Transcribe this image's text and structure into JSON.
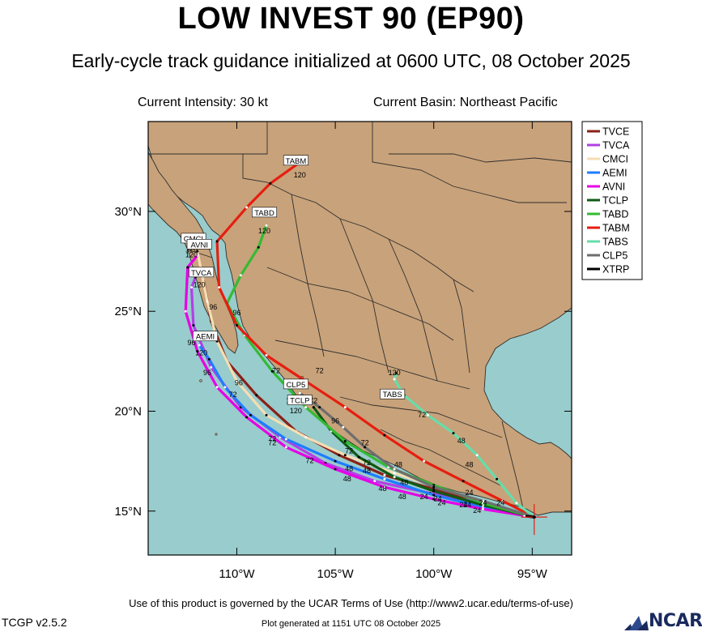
{
  "header": {
    "title": "LOW INVEST 90 (EP90)",
    "subtitle": "Early-cycle track guidance initialized at 0600 UTC, 08 October 2025",
    "intensity": "Current Intensity: 30 kt",
    "basin": "Current Basin: Northeast Pacific"
  },
  "footer": {
    "terms": "Use of this product is governed by the UCAR Terms of Use (http://www2.ucar.edu/terms-of-use)",
    "generated": "Plot generated at 1151 UTC   08 October 2025",
    "version": "TCGP v2.5.2",
    "logo": "NCAR"
  },
  "colors": {
    "ocean": "#99cccc",
    "land": "#c8a27a",
    "border": "#2f2f2f"
  },
  "map": {
    "lon_range": [
      -114.5,
      -93.0
    ],
    "lat_range": [
      12.8,
      34.5
    ],
    "lon_ticks": [
      -110,
      -105,
      -100,
      -95
    ],
    "lat_ticks": [
      15,
      20,
      25,
      30
    ],
    "lon_tick_labels": [
      "110°W",
      "105°W",
      "100°W",
      "95°W"
    ],
    "lat_tick_labels": [
      "15°N",
      "20°N",
      "25°N",
      "30°N"
    ],
    "current_position": {
      "lon": -94.9,
      "lat": 14.7
    }
  },
  "tracks": [
    {
      "name": "TVCE",
      "color": "#8b2018",
      "label": "",
      "points": [
        [
          -94.9,
          14.7
        ],
        [
          -97.5,
          15.4
        ],
        [
          -100,
          16.1
        ],
        [
          -102.5,
          16.8
        ],
        [
          -104.8,
          17.8
        ],
        [
          -107,
          19
        ],
        [
          -109,
          20.8
        ],
        [
          -110.5,
          22.5
        ],
        [
          -111.3,
          24.5
        ],
        [
          -111.7,
          26.6
        ]
      ],
      "tags": []
    },
    {
      "name": "TVCA",
      "color": "#b23fe6",
      "label": "TVCA",
      "label_pos": [
        -111.8,
        26.8
      ],
      "points": [
        [
          -94.9,
          14.7
        ],
        [
          -97.5,
          15.4
        ],
        [
          -100.2,
          15.9
        ],
        [
          -103,
          16.5
        ],
        [
          -105.5,
          17.4
        ],
        [
          -107.8,
          18.7
        ],
        [
          -109.8,
          20.2
        ],
        [
          -111.3,
          22.2
        ],
        [
          -112.2,
          24.3
        ],
        [
          -112.3,
          26.2
        ],
        [
          -112.1,
          26.7
        ]
      ],
      "tags": [
        [
          -111.9,
          26.2,
          "120"
        ]
      ]
    },
    {
      "name": "CMCI",
      "color": "#f5deb3",
      "label": "CMCI",
      "label_pos": [
        -112.2,
        28.5
      ],
      "points": [
        [
          -94.9,
          14.7
        ],
        [
          -97,
          15.3
        ],
        [
          -99.5,
          16.1
        ],
        [
          -102,
          16.9
        ],
        [
          -104.5,
          17.8
        ],
        [
          -106.5,
          18.7
        ],
        [
          -108.5,
          19.8
        ],
        [
          -110,
          21.5
        ],
        [
          -111,
          23.5
        ],
        [
          -111.5,
          25.5
        ],
        [
          -112.0,
          28.0
        ]
      ],
      "tags": [
        [
          -112.3,
          28.0,
          "120"
        ]
      ]
    },
    {
      "name": "AEMI",
      "color": "#1e7dff",
      "label": "AEMI",
      "label_pos": [
        -111.6,
        23.6
      ],
      "points": [
        [
          -94.9,
          14.7
        ],
        [
          -97.5,
          15.2
        ],
        [
          -100,
          15.8
        ],
        [
          -102.5,
          16.6
        ],
        [
          -105,
          17.5
        ],
        [
          -107.5,
          18.6
        ],
        [
          -109.3,
          19.8
        ],
        [
          -110.6,
          21.2
        ],
        [
          -111.4,
          22.6
        ],
        [
          -111.9,
          23.3
        ]
      ],
      "tags": [
        [
          -111.8,
          22.8,
          "120"
        ],
        [
          -112.3,
          23.3,
          "96"
        ],
        [
          -111.5,
          21.8,
          "96"
        ],
        [
          -110.2,
          20.7,
          "72"
        ],
        [
          -108.2,
          18.5,
          "72"
        ],
        [
          -104.3,
          17.0,
          "48"
        ],
        [
          -100.5,
          15.6,
          "24"
        ],
        [
          -97.5,
          15.3,
          "24"
        ]
      ]
    },
    {
      "name": "AVNI",
      "color": "#e600e6",
      "label": "AVNI",
      "label_pos": [
        -111.9,
        28.2
      ],
      "points": [
        [
          -94.9,
          14.7
        ],
        [
          -97.5,
          15.1
        ],
        [
          -100,
          15.6
        ],
        [
          -102.5,
          16.2
        ],
        [
          -105,
          17.1
        ],
        [
          -107.5,
          18.2
        ],
        [
          -109.5,
          19.7
        ],
        [
          -111,
          21.2
        ],
        [
          -112,
          23
        ],
        [
          -112.6,
          25
        ],
        [
          -112.5,
          27.2
        ],
        [
          -112.0,
          27.8
        ]
      ],
      "tags": [
        [
          -112.3,
          27.7,
          "120"
        ],
        [
          -108.2,
          18.3,
          "72"
        ],
        [
          -102.6,
          16.0,
          "48"
        ],
        [
          -98.5,
          15.2,
          "24"
        ]
      ]
    },
    {
      "name": "TCLP",
      "color": "#0f5a14",
      "label": "TCLP",
      "label_pos": [
        -106.8,
        20.4
      ],
      "points": [
        [
          -94.9,
          14.7
        ],
        [
          -97.5,
          15.3
        ],
        [
          -100,
          16.0
        ],
        [
          -102,
          16.7
        ],
        [
          -103.8,
          17.7
        ],
        [
          -105.2,
          19.0
        ],
        [
          -106.1,
          20.2
        ]
      ],
      "tags": [
        [
          -105.0,
          19.4,
          "96"
        ],
        [
          -103.5,
          18.3,
          "72"
        ],
        [
          -101.8,
          17.2,
          "48"
        ],
        [
          -98.2,
          15.8,
          "24"
        ],
        [
          -107,
          19.9,
          "120"
        ]
      ]
    },
    {
      "name": "TABD",
      "color": "#33bb33",
      "label": "TABD",
      "label_pos": [
        -108.6,
        29.8
      ],
      "points": [
        [
          -94.9,
          14.7
        ],
        [
          -97.5,
          15.4
        ],
        [
          -100,
          16.3
        ],
        [
          -102.3,
          17.2
        ],
        [
          -104.5,
          18.5
        ],
        [
          -106.5,
          20.2
        ],
        [
          -108.2,
          22.0
        ],
        [
          -109.6,
          23.8
        ],
        [
          -110.5,
          25.4
        ],
        [
          -109.8,
          26.8
        ],
        [
          -108.9,
          28.2
        ],
        [
          -108.5,
          29.3
        ]
      ],
      "tags": [
        [
          -108.6,
          28.9,
          "120"
        ],
        [
          -110,
          24.8,
          "96"
        ],
        [
          -106.1,
          20.4,
          "72"
        ]
      ]
    },
    {
      "name": "TABM",
      "color": "#e61e10",
      "label": "TABM",
      "label_pos": [
        -107.0,
        32.4
      ],
      "points": [
        [
          -94.9,
          14.7
        ],
        [
          -96.5,
          15.5
        ],
        [
          -98.5,
          16.5
        ],
        [
          -100.5,
          17.5
        ],
        [
          -102.5,
          18.8
        ],
        [
          -104.5,
          20.2
        ],
        [
          -106.5,
          21.5
        ],
        [
          -108.5,
          22.8
        ],
        [
          -110,
          24.3
        ],
        [
          -110.9,
          26.2
        ],
        [
          -111.0,
          28.5
        ],
        [
          -109.5,
          30.2
        ],
        [
          -108.3,
          31.4
        ],
        [
          -106.6,
          32.6
        ]
      ],
      "tags": [
        [
          -106.8,
          31.7,
          "120"
        ],
        [
          -105.8,
          21.9,
          "72"
        ],
        [
          -98.2,
          17.2,
          "48"
        ],
        [
          -96.6,
          15.3,
          "24"
        ]
      ]
    },
    {
      "name": "TABS",
      "color": "#66ddaa",
      "label": "TABS",
      "label_pos": [
        -102.1,
        20.7
      ],
      "points": [
        [
          -94.9,
          14.7
        ],
        [
          -95.8,
          15.4
        ],
        [
          -96.8,
          16.6
        ],
        [
          -97.8,
          17.8
        ],
        [
          -99,
          18.9
        ],
        [
          -100.3,
          19.8
        ],
        [
          -101.5,
          20.8
        ],
        [
          -102.0,
          21.6
        ],
        [
          -101.9,
          21.9
        ]
      ],
      "tags": [
        [
          -102.0,
          21.8,
          "120"
        ],
        [
          -101.8,
          20.7,
          "96"
        ],
        [
          -100.6,
          19.7,
          "72"
        ],
        [
          -98.6,
          18.4,
          "48"
        ]
      ]
    },
    {
      "name": "CLP5",
      "color": "#6e6e6e",
      "label": "CLP5",
      "label_pos": [
        -107.0,
        21.2
      ],
      "points": [
        [
          -94.9,
          14.7
        ],
        [
          -97.5,
          15.5
        ],
        [
          -100,
          16.2
        ],
        [
          -102,
          17.1
        ],
        [
          -103.5,
          18.2
        ],
        [
          -104.6,
          19.2
        ],
        [
          -105.8,
          20.2
        ],
        [
          -106.8,
          20.9
        ]
      ],
      "tags": [
        [
          -107.2,
          20.4,
          "120"
        ],
        [
          -103.4,
          17.3,
          "72"
        ],
        [
          -101.5,
          16.3,
          "48"
        ]
      ]
    },
    {
      "name": "XTRP",
      "color": "#000000",
      "label": "",
      "points": [
        [
          -94.9,
          14.7
        ],
        [
          -95.4,
          14.75
        ]
      ],
      "tags": []
    }
  ],
  "extra_tags": [
    [
      -111.2,
      25.1,
      "96"
    ],
    [
      -108.0,
      21.9,
      "72"
    ],
    [
      -106.3,
      17.4,
      "72"
    ],
    [
      -104.4,
      16.5,
      "48"
    ],
    [
      -101.6,
      15.6,
      "48"
    ],
    [
      -99.8,
      15.5,
      "24"
    ],
    [
      -98.3,
      15.2,
      "24"
    ],
    [
      -97.8,
      14.9,
      "24"
    ],
    [
      -109.9,
      21.3,
      "96"
    ],
    [
      -104.3,
      17.9,
      "72"
    ],
    [
      -103.4,
      16.9,
      "48"
    ],
    [
      -99.6,
      15.3,
      "24"
    ]
  ],
  "legend": {
    "items": [
      "TVCE",
      "TVCA",
      "CMCI",
      "AEMI",
      "AVNI",
      "TCLP",
      "TABD",
      "TABM",
      "TABS",
      "CLP5",
      "XTRP"
    ]
  }
}
